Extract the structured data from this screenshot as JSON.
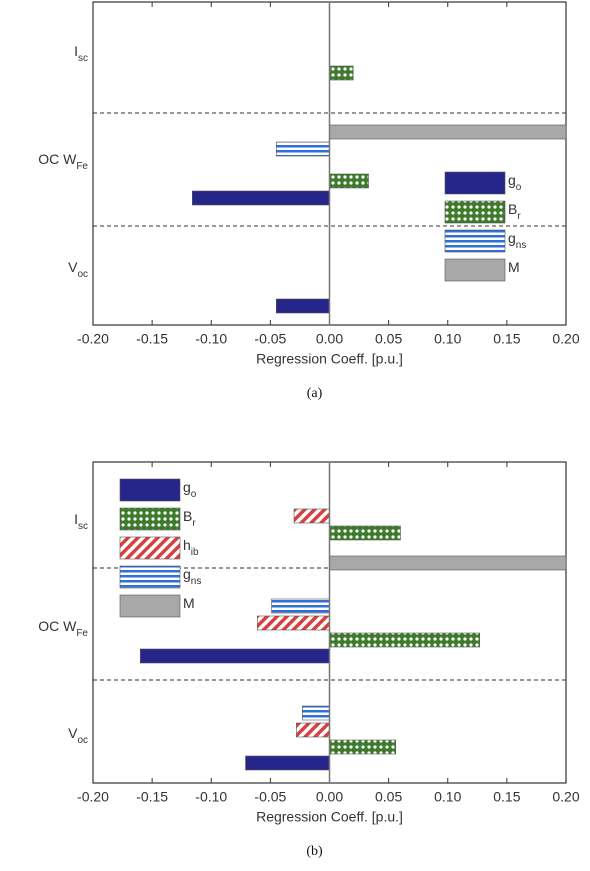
{
  "chart_data": [
    {
      "type": "barh",
      "caption": "(a)",
      "xlabel": "Regression Coeff. [p.u.]",
      "categories": [
        {
          "text": "I",
          "sub": "sc"
        },
        {
          "text": "OC W",
          "sub": "Fe"
        },
        {
          "text": "V",
          "sub": "oc"
        }
      ],
      "series": [
        {
          "name": {
            "text": "g",
            "sub": "o"
          },
          "color": "#25258a",
          "hatch": "solid",
          "values": [
            null,
            -0.116,
            -0.045
          ]
        },
        {
          "name": {
            "text": "B",
            "sub": "r"
          },
          "color": "#3d7a2c",
          "hatch": "dots",
          "values": [
            0.02,
            0.033,
            null
          ]
        },
        {
          "name": {
            "text": "g",
            "sub": "ns"
          },
          "color": "#2f6fd6",
          "hatch": "horizontal",
          "values": [
            null,
            -0.045,
            null
          ]
        },
        {
          "name": {
            "text": "M",
            "sub": ""
          },
          "color": "#a8a8a8",
          "hatch": "solid",
          "values": [
            null,
            0.2,
            null
          ]
        }
      ],
      "xlim": [
        -0.2,
        0.2
      ],
      "xticks": [
        {
          "value": -0.2,
          "label": "-0.20"
        },
        {
          "value": -0.15,
          "label": "-0.15"
        },
        {
          "value": -0.1,
          "label": "-0.10"
        },
        {
          "value": -0.05,
          "label": "-0.05"
        },
        {
          "value": 0,
          "label": "0.00"
        },
        {
          "value": 0.05,
          "label": "0.05"
        },
        {
          "value": 0.1,
          "label": "0.10"
        },
        {
          "value": 0.15,
          "label": "0.15"
        },
        {
          "value": 0.2,
          "label": "0.20"
        }
      ],
      "legend": "lower right"
    },
    {
      "type": "barh",
      "caption": "(b)",
      "xlabel": "Regression Coeff. [p.u.]",
      "categories": [
        {
          "text": "I",
          "sub": "sc"
        },
        {
          "text": "OC W",
          "sub": "Fe"
        },
        {
          "text": "V",
          "sub": "oc"
        }
      ],
      "series": [
        {
          "name": {
            "text": "g",
            "sub": "o"
          },
          "color": "#25258a",
          "hatch": "solid",
          "values": [
            null,
            -0.16,
            -0.071
          ]
        },
        {
          "name": {
            "text": "B",
            "sub": "r"
          },
          "color": "#3d7a2c",
          "hatch": "dots",
          "values": [
            0.06,
            0.127,
            0.056
          ]
        },
        {
          "name": {
            "text": "h",
            "sub": "ib"
          },
          "color": "#d64040",
          "hatch": "diagonal",
          "values": [
            -0.03,
            -0.061,
            -0.028
          ]
        },
        {
          "name": {
            "text": "g",
            "sub": "ns"
          },
          "color": "#2f6fd6",
          "hatch": "horizontal",
          "values": [
            null,
            -0.049,
            -0.023
          ]
        },
        {
          "name": {
            "text": "M",
            "sub": ""
          },
          "color": "#a8a8a8",
          "hatch": "solid",
          "values": [
            null,
            0.2,
            null
          ]
        }
      ],
      "xlim": [
        -0.2,
        0.2
      ],
      "xticks": [
        {
          "value": -0.2,
          "label": "-0.20"
        },
        {
          "value": -0.15,
          "label": "-0.15"
        },
        {
          "value": -0.1,
          "label": "-0.10"
        },
        {
          "value": -0.05,
          "label": "-0.05"
        },
        {
          "value": 0,
          "label": "0.00"
        },
        {
          "value": 0.05,
          "label": "0.05"
        },
        {
          "value": 0.1,
          "label": "0.10"
        },
        {
          "value": 0.15,
          "label": "0.15"
        },
        {
          "value": 0.2,
          "label": "0.20"
        }
      ],
      "legend": "upper left"
    }
  ]
}
